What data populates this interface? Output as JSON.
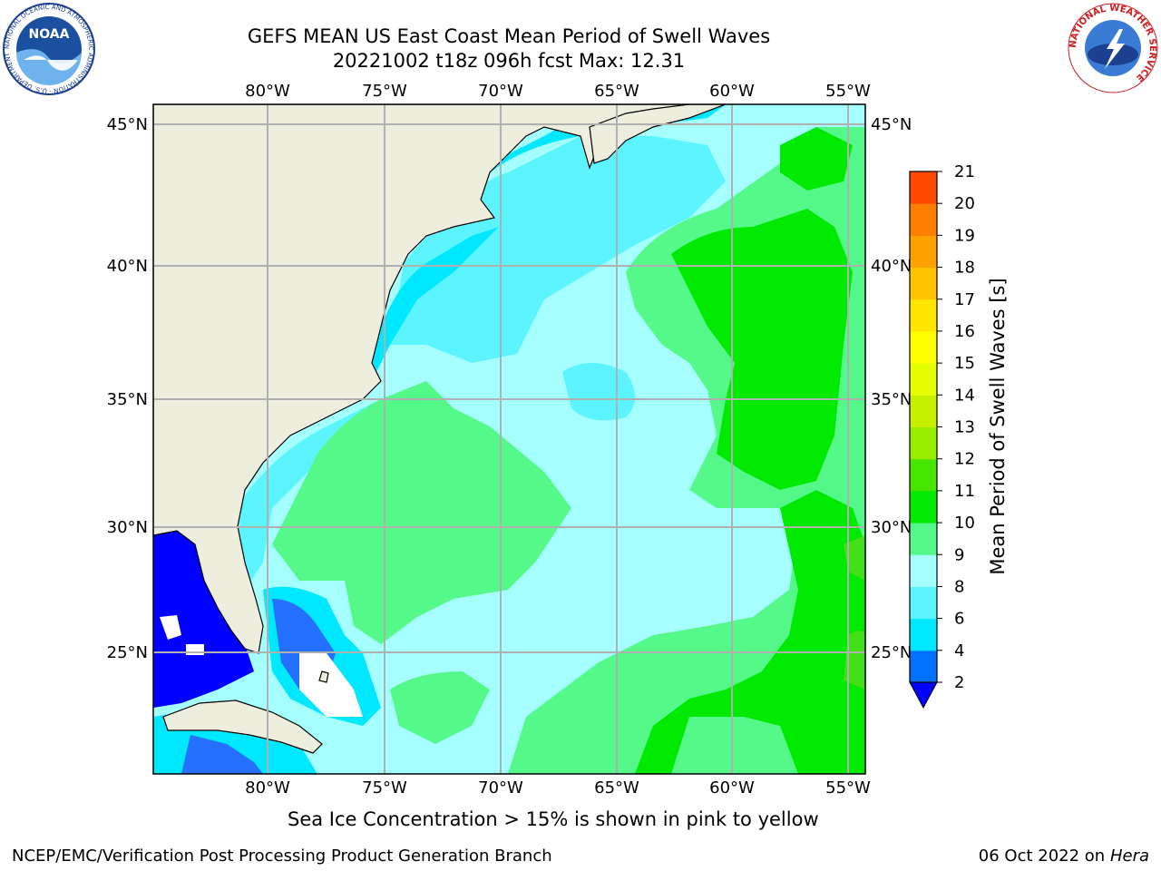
{
  "header": {
    "title_line1": "GEFS MEAN US East Coast Mean Period of Swell Waves",
    "title_line2": "20221002 t18z 096h fcst   Max: 12.31"
  },
  "map": {
    "lon_ticks": [
      "80°W",
      "75°W",
      "70°W",
      "65°W",
      "60°W",
      "55°W"
    ],
    "lat_ticks": [
      "45°N",
      "40°N",
      "35°N",
      "30°N",
      "25°N"
    ],
    "colors": {
      "land": "#eeeedf",
      "grid": "#b0b0b0",
      "c_2_4": "#0000ff",
      "c_4_6": "#2570ff",
      "c_6_8": "#00e8ff",
      "c_8_9": "#5cf5ff",
      "c_9_10": "#a6ffff",
      "c_10_11": "#55f98a",
      "c_11_12": "#00e900",
      "c_12_13": "#43e01a"
    }
  },
  "colorbar": {
    "label": "Mean Period of Swell Waves [s]",
    "ticks": [
      "2",
      "4",
      "6",
      "8",
      "9",
      "10",
      "11",
      "12",
      "13",
      "14",
      "15",
      "16",
      "17",
      "18",
      "19",
      "20",
      "21"
    ],
    "band_colors": [
      "#0070ff",
      "#00e8ff",
      "#5cf5ff",
      "#a6ffff",
      "#55f98a",
      "#00e900",
      "#47e600",
      "#99ee00",
      "#c6f000",
      "#e6ff00",
      "#ffff00",
      "#ffe600",
      "#ffc300",
      "#ffa200",
      "#ff7f00",
      "#ff4a00",
      "#ff0000",
      "#ff0000",
      "#ff0000",
      "#ff0000"
    ],
    "under_color": "#0000ff"
  },
  "footer": {
    "ice_note": "Sea Ice Concentration > 15% is shown in pink to yellow",
    "credit": "NCEP/EMC/Verification Post Processing Product Generation Branch",
    "date_prefix": "06 Oct 2022 on ",
    "date_host": "Hera"
  },
  "logos": {
    "noaa_text": "NOAA",
    "noaa_ring_text": "NATIONAL OCEANIC AND ATMOSPHERIC ADMINISTRATION · U.S. DEPARTMENT OF COMMERCE",
    "nws_ring_text": "NATIONAL WEATHER SERVICE"
  }
}
